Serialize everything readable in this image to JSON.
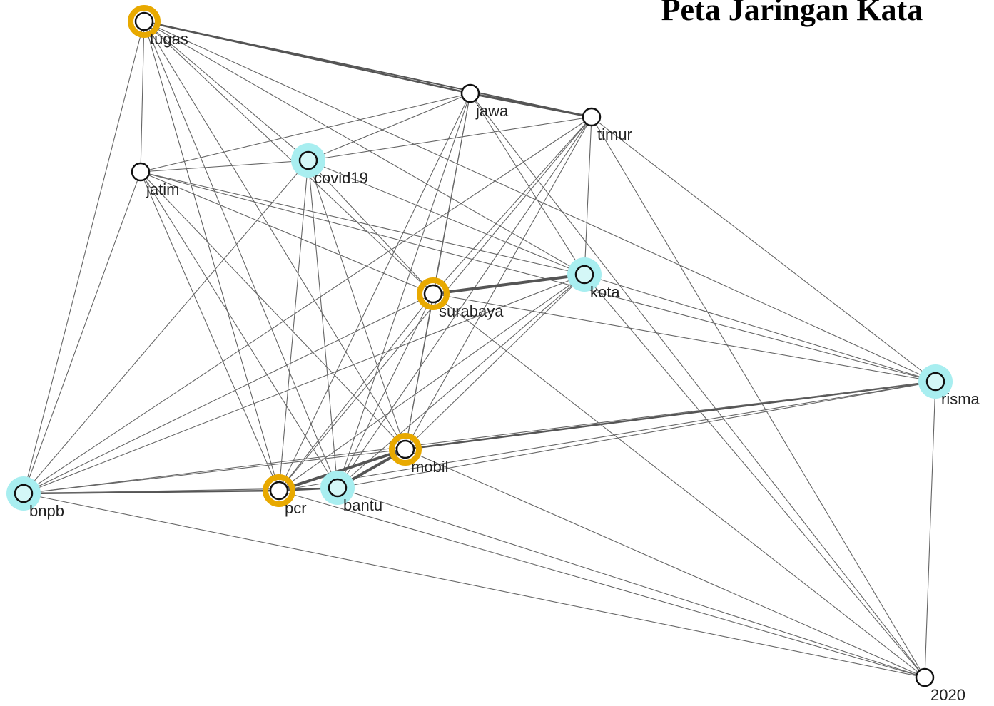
{
  "title": "Peta Jaringan Kata",
  "nodes": [
    {
      "label": "tugas"
    },
    {
      "label": "jawa"
    },
    {
      "label": "timur"
    },
    {
      "label": "covid19"
    },
    {
      "label": "jatim"
    },
    {
      "label": "kota"
    },
    {
      "label": "surabaya"
    },
    {
      "label": "risma"
    },
    {
      "label": "mobil"
    },
    {
      "label": "bnpb"
    },
    {
      "label": "pcr"
    },
    {
      "label": "bantu"
    },
    {
      "label": "2020"
    }
  ]
}
